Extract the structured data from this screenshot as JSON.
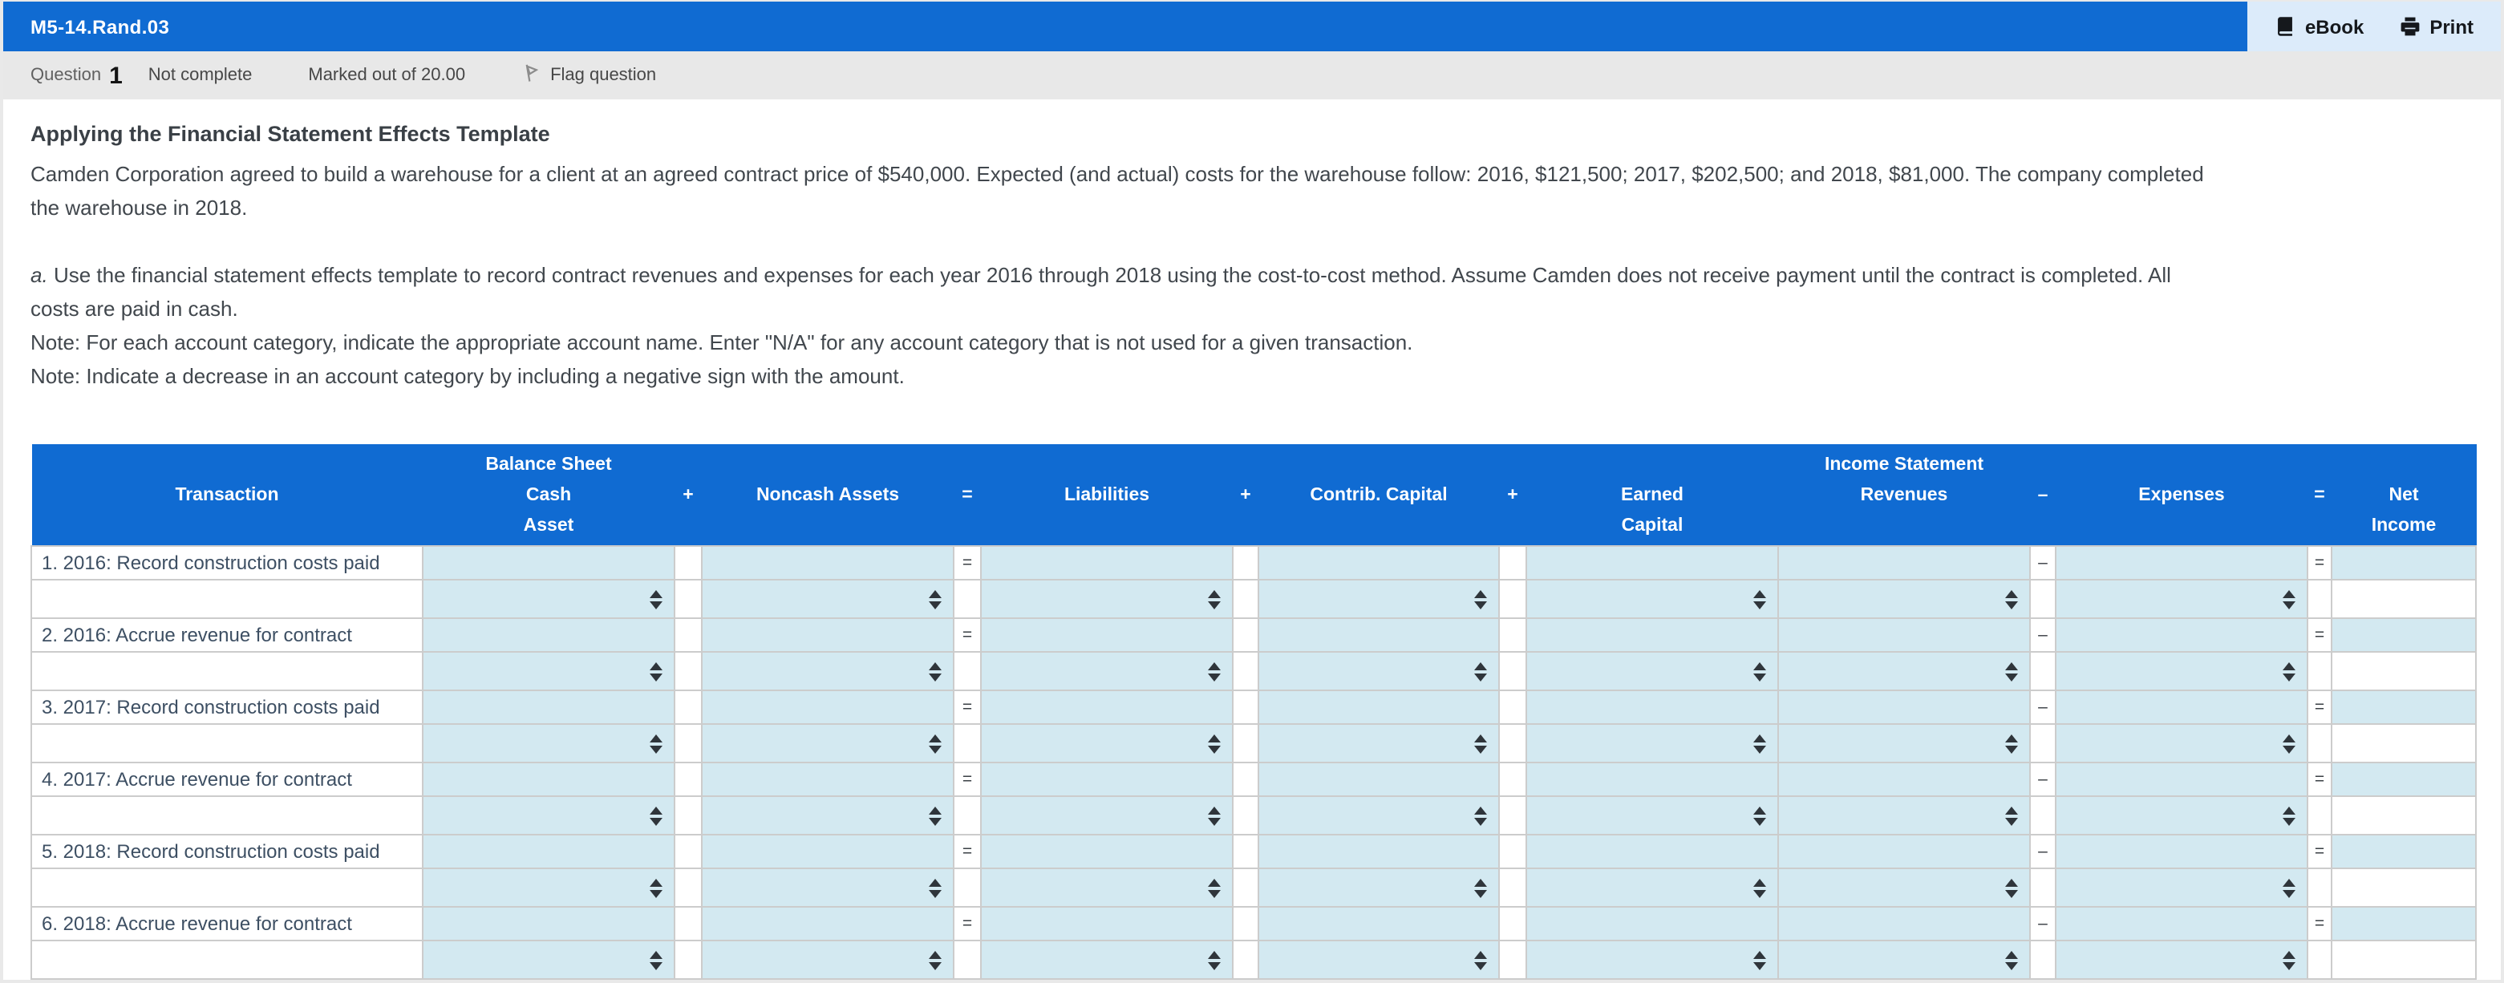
{
  "colors": {
    "header_blue": "#106bd2",
    "actions_bg": "#dcebfa",
    "cell_blue": "#d3e9f1",
    "qbar_gray": "#e8e8e8",
    "page_gray": "#e9e9e9",
    "grid_border": "#cccccc"
  },
  "window": {
    "title": "M5-14.Rand.03",
    "ebook_label": "eBook",
    "print_label": "Print"
  },
  "question_bar": {
    "question_label": "Question",
    "question_number": "1",
    "status": "Not complete",
    "marked": "Marked out of 20.00",
    "flag_label": "Flag question"
  },
  "problem": {
    "heading": "Applying the Financial Statement Effects Template",
    "p1_lines": [
      "Camden Corporation agreed to build a warehouse for a client at an agreed contract price of $540,000. Expected (and actual) costs for the warehouse follow: 2016, $121,500; 2017, $202,500; and 2018, $81,000. The company completed",
      "the warehouse in 2018."
    ],
    "part_a": {
      "label": "a.",
      "lines": [
        "Use the financial statement effects template to record contract revenues and expenses for each year 2016 through 2018 using the cost-to-cost method. Assume Camden does not receive payment until the contract is completed. All",
        "costs are paid in cash."
      ]
    },
    "note1": "Note: For each account category, indicate the appropriate account name. Enter \"N/A\" for any account category that is not used for a given transaction.",
    "note2": "Note: Indicate a decrease in an account category by including a negative sign with the amount."
  },
  "table": {
    "header": {
      "transaction": "Transaction",
      "balance_sheet": "Balance Sheet",
      "income_statement": "Income Statement",
      "cash_top": "Cash",
      "cash_bottom": "Asset",
      "noncash": "Noncash Assets",
      "liabilities": "Liabilities",
      "contrib": "Contrib. Capital",
      "earned_top": "Earned",
      "earned_bottom": "Capital",
      "revenues": "Revenues",
      "expenses": "Expenses",
      "net_top": "Net",
      "net_bottom": "Income",
      "plus": "+",
      "equals": "=",
      "minus": "–"
    },
    "body_symbols": {
      "equals": "=",
      "minus": "–"
    },
    "transactions": [
      {
        "label": "1. 2016: Record construction costs paid"
      },
      {
        "label": "2. 2016: Accrue revenue for contract"
      },
      {
        "label": "3. 2017: Record construction costs paid"
      },
      {
        "label": "4. 2017: Accrue revenue for contract"
      },
      {
        "label": "5. 2018: Record construction costs paid"
      },
      {
        "label": "6. 2018: Accrue revenue for contract"
      }
    ]
  }
}
